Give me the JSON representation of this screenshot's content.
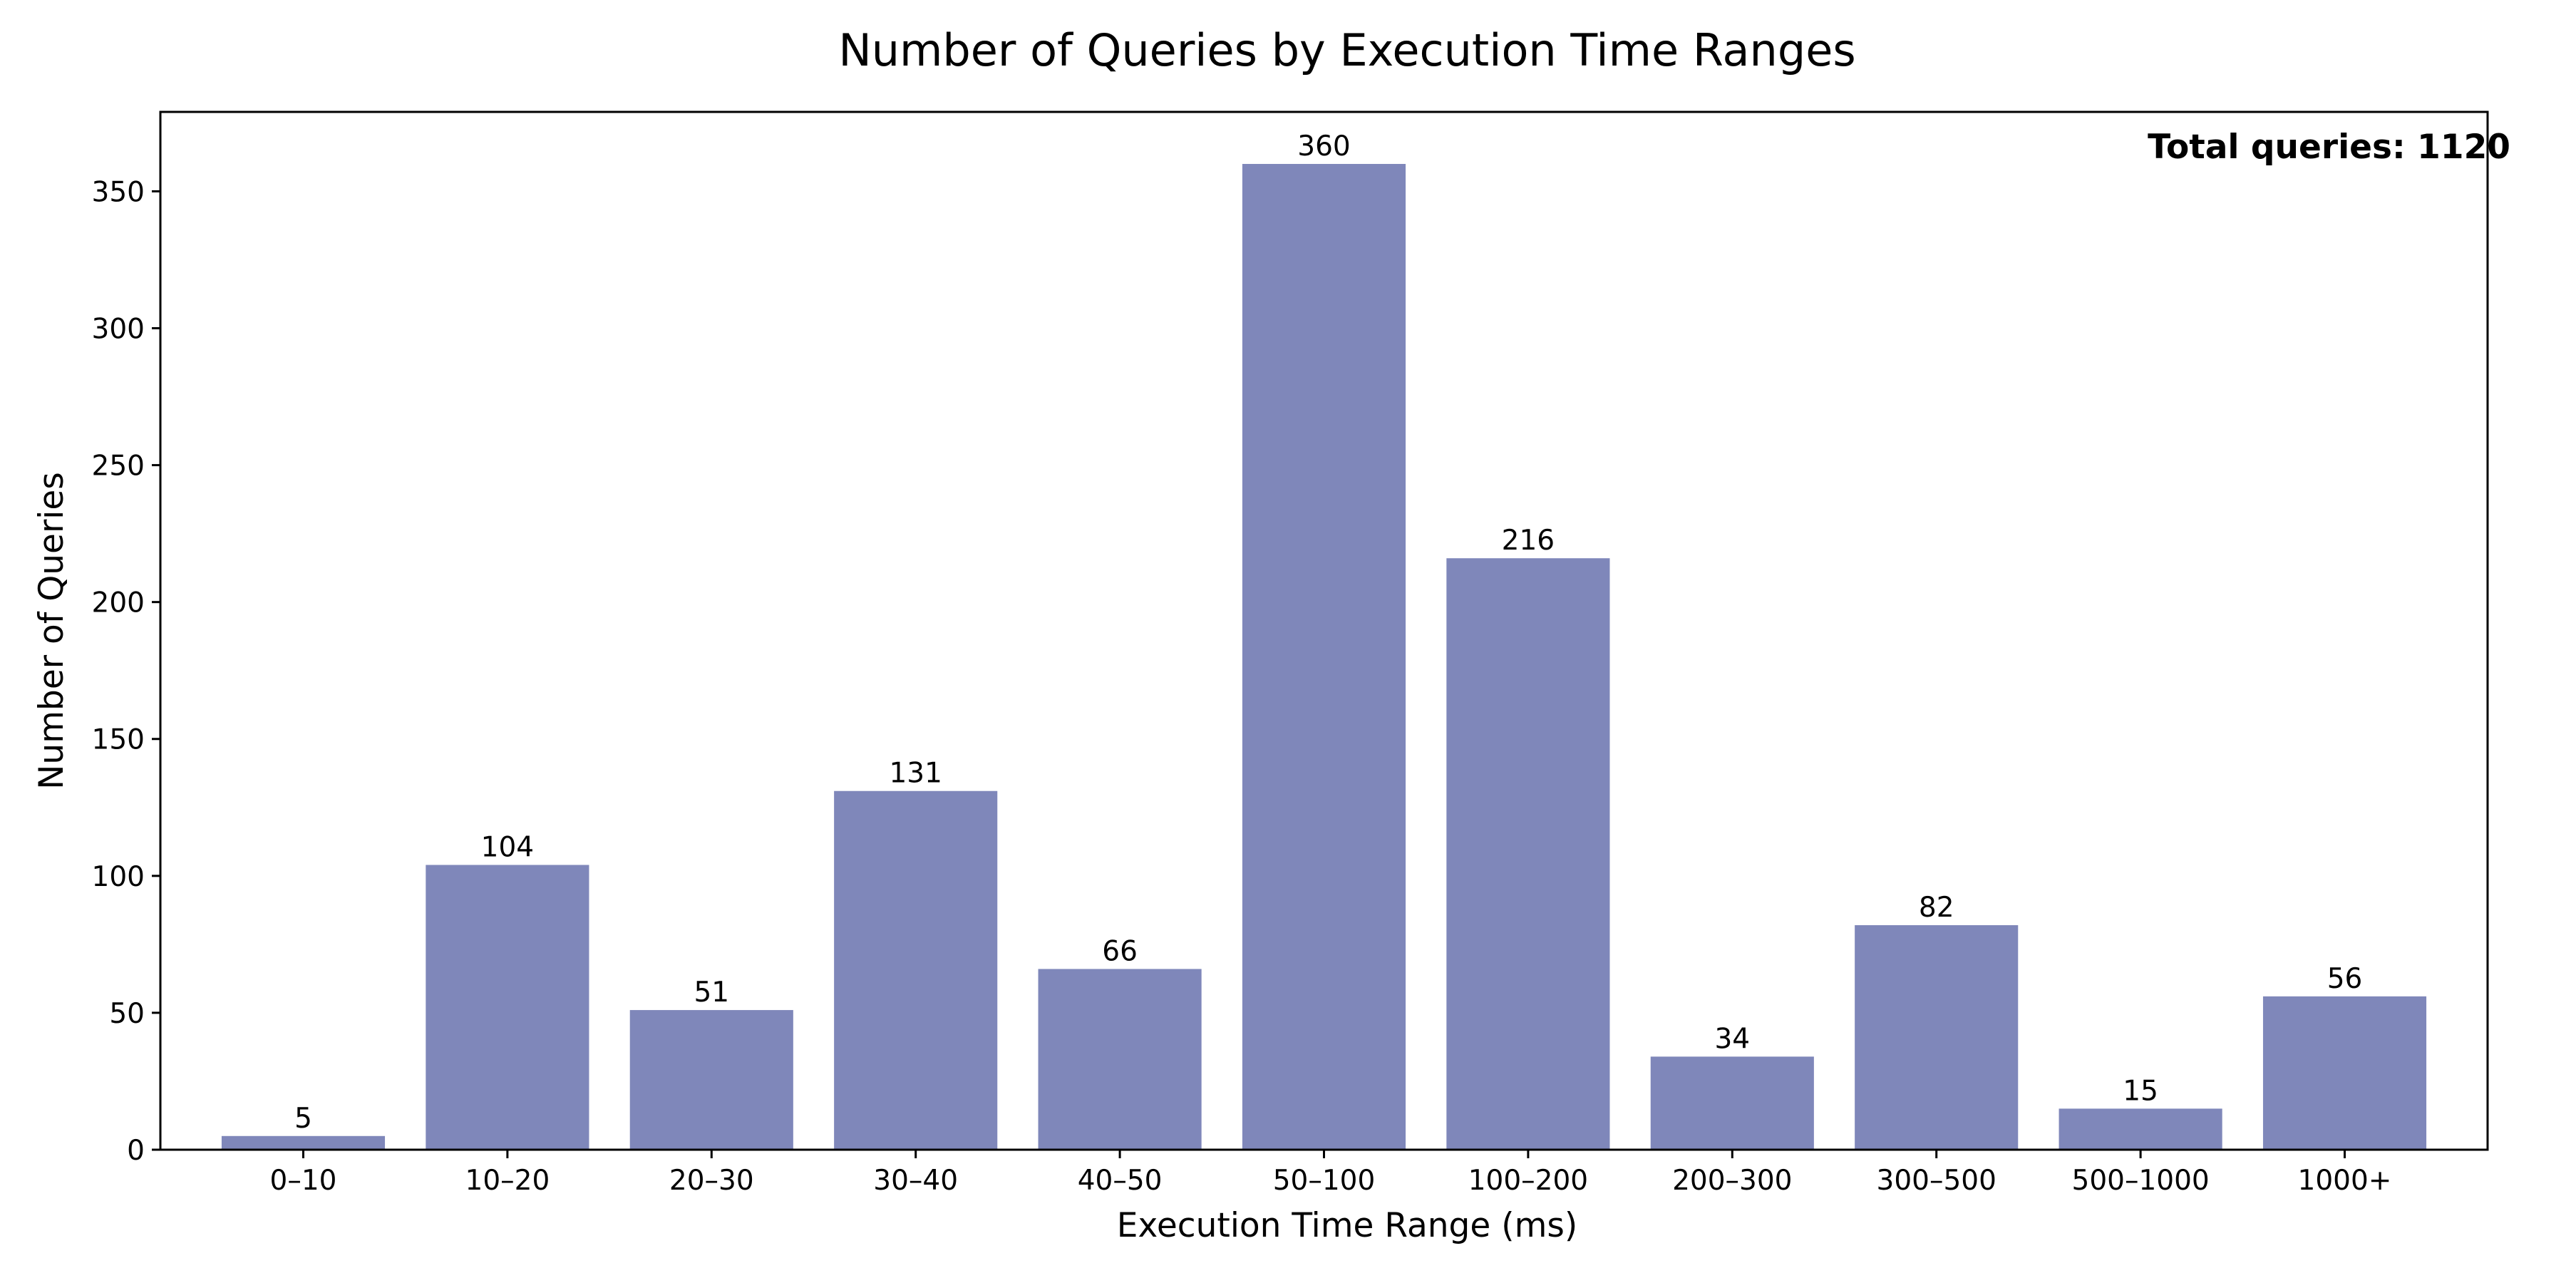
{
  "chart_data": {
    "type": "bar",
    "title": "Number of Queries by Execution Time Ranges",
    "xlabel": "Execution Time Range (ms)",
    "ylabel": "Number of Queries",
    "categories": [
      "0–10",
      "10–20",
      "20–30",
      "30–40",
      "40–50",
      "50–100",
      "100–200",
      "200–300",
      "300–500",
      "500–1000",
      "1000+"
    ],
    "values": [
      5,
      104,
      51,
      131,
      66,
      360,
      216,
      34,
      82,
      15,
      56
    ],
    "ylim": [
      0,
      379
    ],
    "yticks": [
      0,
      50,
      100,
      150,
      200,
      250,
      300,
      350
    ],
    "bar_color": "#7f87ba",
    "grid": false,
    "legend": "none",
    "annotation": "Total queries: 1120",
    "annotation_position": "top-right"
  }
}
